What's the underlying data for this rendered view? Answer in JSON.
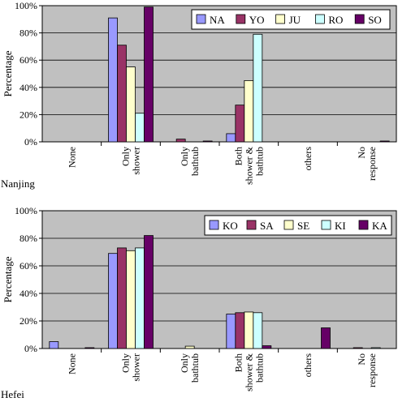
{
  "chart_data": [
    {
      "type": "bar",
      "panel_label": "Nanjing",
      "ylabel": "Percentage",
      "ylim": [
        0,
        100
      ],
      "yticks": [
        "0%",
        "20%",
        "40%",
        "60%",
        "80%",
        "100%"
      ],
      "grid": true,
      "legend_position": "top-right",
      "categories": [
        [
          "None"
        ],
        [
          "Only",
          "shower"
        ],
        [
          "Only",
          "bathtub"
        ],
        [
          "Both",
          "shower &",
          "bathtub"
        ],
        [
          "others"
        ],
        [
          "No",
          "response"
        ]
      ],
      "series": [
        {
          "name": "NA",
          "color": "#9999ff",
          "values": [
            0,
            91,
            0,
            6,
            0,
            0
          ]
        },
        {
          "name": "YO",
          "color": "#993366",
          "values": [
            0,
            71,
            2,
            27,
            0,
            0
          ]
        },
        {
          "name": "JU",
          "color": "#ffffcc",
          "values": [
            0,
            55,
            0,
            45,
            0,
            0
          ]
        },
        {
          "name": "RO",
          "color": "#ccffff",
          "values": [
            0,
            21,
            0,
            79,
            0,
            0
          ]
        },
        {
          "name": "SO",
          "color": "#660066",
          "values": [
            0,
            99,
            0.6,
            0,
            0,
            0.6
          ]
        }
      ]
    },
    {
      "type": "bar",
      "panel_label": "Hefei",
      "ylabel": "Percentage",
      "ylim": [
        0,
        100
      ],
      "yticks": [
        "0%",
        "20%",
        "40%",
        "60%",
        "80%",
        "100%"
      ],
      "grid": true,
      "legend_position": "top-right",
      "categories": [
        [
          "None"
        ],
        [
          "Only",
          "shower"
        ],
        [
          "Only",
          "bathtub"
        ],
        [
          "Both",
          "shower &",
          "bathtub"
        ],
        [
          "others"
        ],
        [
          "No",
          "response"
        ]
      ],
      "series": [
        {
          "name": "KO",
          "color": "#9999ff",
          "values": [
            5,
            69,
            0,
            25,
            0,
            0
          ]
        },
        {
          "name": "SA",
          "color": "#993366",
          "values": [
            0,
            73,
            0,
            26,
            0,
            0.6
          ]
        },
        {
          "name": "SE",
          "color": "#ffffcc",
          "values": [
            0,
            71,
            1.7,
            26.5,
            0,
            0
          ]
        },
        {
          "name": "KI",
          "color": "#ccffff",
          "values": [
            0,
            73,
            0,
            26,
            0,
            0.6
          ]
        },
        {
          "name": "KA",
          "color": "#660066",
          "values": [
            0.6,
            82,
            0,
            2,
            15,
            0
          ]
        }
      ]
    }
  ]
}
